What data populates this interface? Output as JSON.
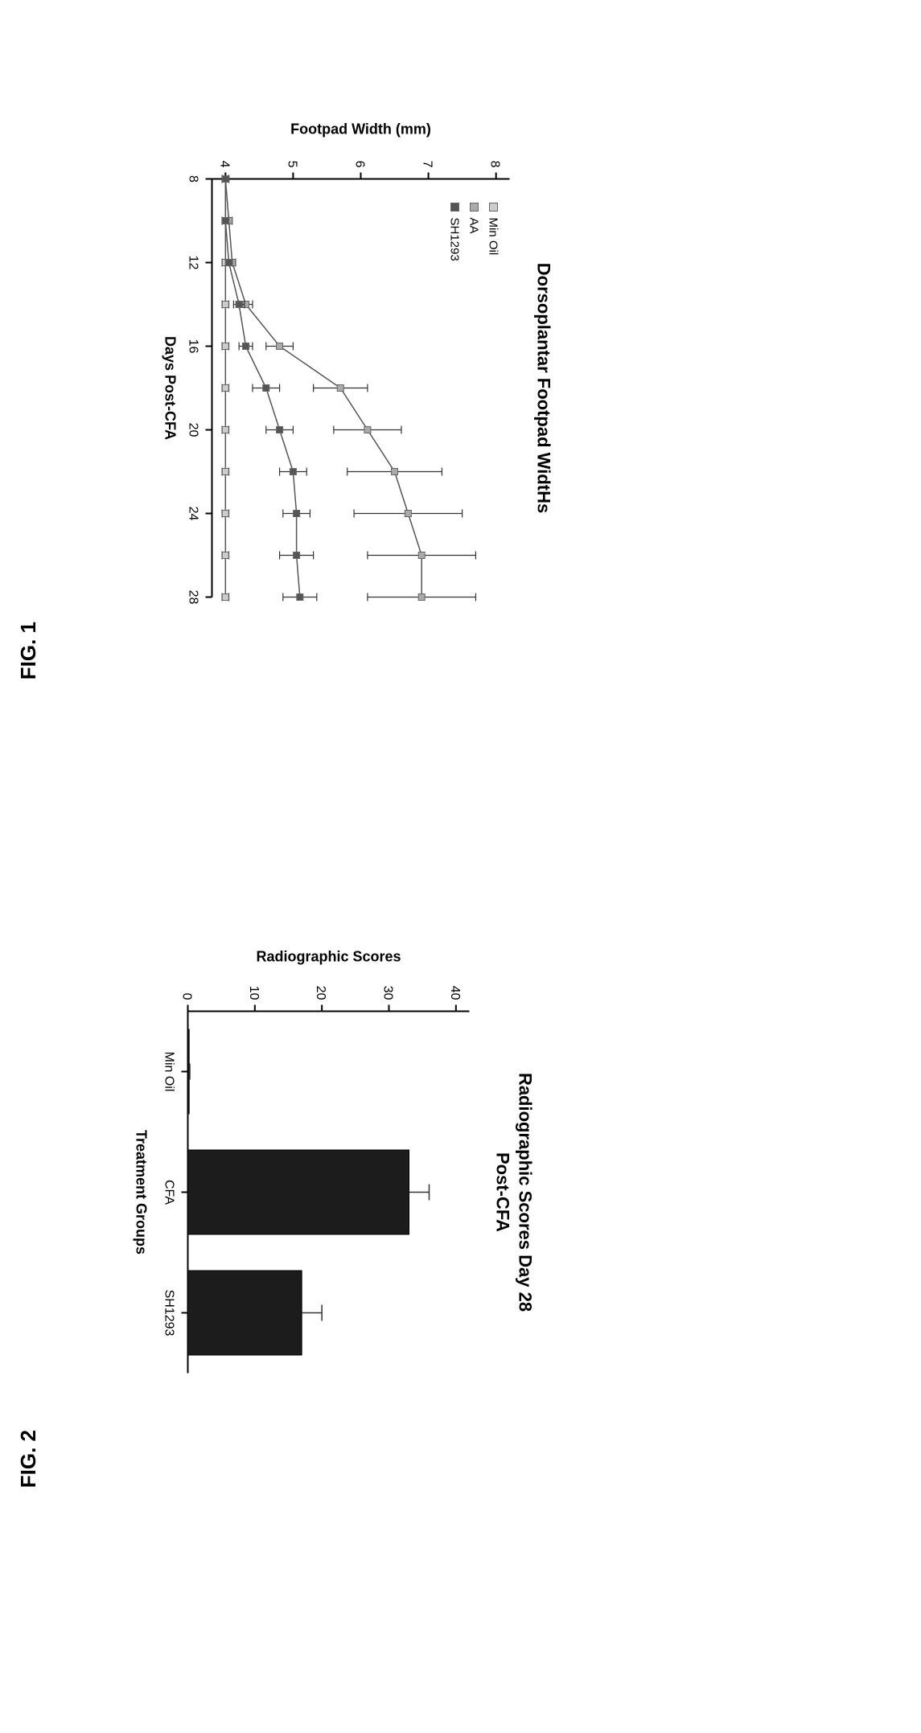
{
  "fig1": {
    "label": "FIG. 1",
    "title": "Dorsoplantar Footpad WidtHs",
    "title_fontsize": 22,
    "title_weight": "bold",
    "xlabel": "Days Post-CFA",
    "ylabel": "Footpad Width (mm)",
    "axis_label_fontsize": 18,
    "tick_fontsize": 16,
    "xlim": [
      8,
      28
    ],
    "ylim": [
      3.8,
      8.2
    ],
    "xticks": [
      8,
      12,
      16,
      20,
      24,
      28
    ],
    "yticks": [
      4,
      5,
      6,
      7,
      8
    ],
    "marker_size": 8,
    "marker_stroke": "#666666",
    "line_color": "#555555",
    "line_width": 1.5,
    "series": [
      {
        "name": "Min Oil",
        "x": [
          8,
          10,
          12,
          14,
          16,
          18,
          20,
          22,
          24,
          26,
          28
        ],
        "y": [
          4.0,
          4.0,
          4.0,
          4.0,
          4.0,
          4.0,
          4.0,
          4.0,
          4.0,
          4.0,
          4.0
        ],
        "err": [
          0.05,
          0.05,
          0.05,
          0.05,
          0.05,
          0.05,
          0.05,
          0.05,
          0.05,
          0.05,
          0.05
        ],
        "fill": "#cccccc"
      },
      {
        "name": "AA",
        "x": [
          8,
          10,
          12,
          14,
          16,
          18,
          20,
          22,
          24,
          26,
          28
        ],
        "y": [
          4.0,
          4.05,
          4.1,
          4.3,
          4.8,
          5.7,
          6.1,
          6.5,
          6.7,
          6.9,
          6.9
        ],
        "err": [
          0.05,
          0.05,
          0.05,
          0.1,
          0.2,
          0.4,
          0.5,
          0.7,
          0.8,
          0.8,
          0.8
        ],
        "fill": "#aaaaaa"
      },
      {
        "name": "SH1293",
        "x": [
          8,
          10,
          12,
          14,
          16,
          18,
          20,
          22,
          24,
          26,
          28
        ],
        "y": [
          4.0,
          4.0,
          4.05,
          4.2,
          4.3,
          4.6,
          4.8,
          5.0,
          5.05,
          5.05,
          5.1
        ],
        "err": [
          0.05,
          0.05,
          0.05,
          0.08,
          0.1,
          0.2,
          0.2,
          0.2,
          0.2,
          0.25,
          0.25
        ],
        "fill": "#555555"
      }
    ],
    "legend_box_stroke": "#333333"
  },
  "fig2": {
    "label": "FIG. 2",
    "title_line1": "Radiographic Scores Day 28",
    "title_line2": "Post-CFA",
    "title_fontsize": 22,
    "title_weight": "bold",
    "xlabel": "Treatment Groups",
    "ylabel": "Radiographic Scores",
    "axis_label_fontsize": 18,
    "tick_fontsize": 16,
    "ylim": [
      0,
      42
    ],
    "yticks": [
      0,
      10,
      20,
      30,
      40
    ],
    "categories": [
      "Min Oil",
      "CFA",
      "SH1293"
    ],
    "values": [
      0.2,
      33,
      17
    ],
    "errors": [
      0.1,
      3,
      3
    ],
    "bar_fill": "#1c1c1c",
    "bar_stroke": "#000000",
    "bar_width": 0.7,
    "err_color": "#333333",
    "background_color": "#ffffff"
  }
}
